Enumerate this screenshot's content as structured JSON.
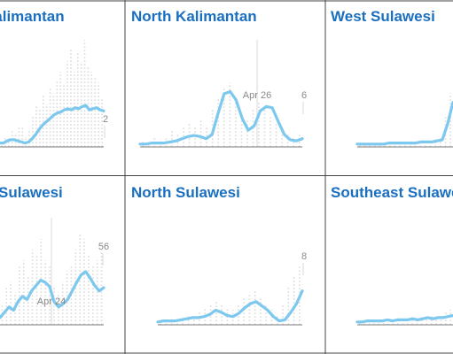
{
  "colors": {
    "line": "#7cc8ee",
    "dots": "#dcdcdc",
    "baseline": "#7a7a7a",
    "refline": "#d8d8d8",
    "label": "#8a8a8a",
    "title": "#1a6fc0",
    "border": "#444444"
  },
  "chart_data": [
    {
      "type": "line",
      "title": "Kalimantan",
      "value_label": "2",
      "date_label": "",
      "trend": [
        0.02,
        0.02,
        0.04,
        0.05,
        0.05,
        0.04,
        0.03,
        0.02,
        0.03,
        0.06,
        0.1,
        0.15,
        0.19,
        0.22,
        0.25,
        0.28,
        0.3,
        0.31,
        0.33,
        0.34,
        0.33,
        0.35,
        0.34,
        0.36,
        0.37,
        0.33,
        0.34,
        0.35,
        0.33,
        0.32
      ],
      "dots": [
        0.05,
        0.1,
        0.08,
        0.15,
        0.12,
        0.2,
        0.18,
        0.1,
        0.16,
        0.28,
        0.38,
        0.35,
        0.48,
        0.4,
        0.55,
        0.5,
        0.62,
        0.7,
        0.58,
        0.8,
        0.92,
        0.7,
        0.88,
        0.78,
        1.0,
        0.75,
        0.7,
        0.65,
        0.6,
        0.45
      ]
    },
    {
      "type": "line",
      "title": "North Kalimantan",
      "value_label": "6",
      "date_label": "Apr 26",
      "trend": [
        0.01,
        0.01,
        0.02,
        0.02,
        0.02,
        0.03,
        0.04,
        0.06,
        0.08,
        0.09,
        0.08,
        0.06,
        0.1,
        0.3,
        0.48,
        0.5,
        0.42,
        0.25,
        0.14,
        0.18,
        0.32,
        0.36,
        0.35,
        0.22,
        0.1,
        0.05,
        0.04,
        0.06
      ],
      "dots": [
        0.05,
        0.04,
        0.08,
        0.07,
        0.1,
        0.15,
        0.12,
        0.2,
        0.22,
        0.18,
        0.25,
        0.2,
        0.35,
        0.45,
        0.55,
        0.6,
        0.45,
        0.3,
        0.25,
        0.35,
        0.42,
        0.38,
        0.3,
        0.22,
        0.18,
        0.12,
        0.1,
        0.12
      ]
    },
    {
      "type": "line",
      "title": "West Sulawesi",
      "value_label": "",
      "date_label": "",
      "trend": [
        0.01,
        0.01,
        0.01,
        0.01,
        0.01,
        0.01,
        0.02,
        0.02,
        0.02,
        0.02,
        0.02,
        0.02,
        0.03,
        0.03,
        0.03,
        0.04,
        0.05,
        0.2,
        0.4
      ],
      "dots": [
        0.02,
        0.02,
        0.03,
        0.02,
        0.03,
        0.02,
        0.04,
        0.03,
        0.03,
        0.04,
        0.04,
        0.03,
        0.05,
        0.05,
        0.06,
        0.07,
        0.08,
        0.3,
        0.5
      ]
    },
    {
      "type": "line",
      "title": "Sulawesi",
      "value_label": "56",
      "date_label": "Apr 24",
      "trend": [
        0.05,
        0.1,
        0.15,
        0.12,
        0.2,
        0.25,
        0.22,
        0.3,
        0.35,
        0.4,
        0.38,
        0.34,
        0.2,
        0.15,
        0.18,
        0.22,
        0.3,
        0.38,
        0.45,
        0.48,
        0.42,
        0.35,
        0.3,
        0.33
      ],
      "dots": [
        0.2,
        0.35,
        0.4,
        0.3,
        0.55,
        0.6,
        0.45,
        0.7,
        0.65,
        0.8,
        0.6,
        0.55,
        0.35,
        0.3,
        0.4,
        0.5,
        0.55,
        0.7,
        0.85,
        0.8,
        0.65,
        0.55,
        0.6,
        0.7
      ]
    },
    {
      "type": "line",
      "title": "North Sulawesi",
      "value_label": "8",
      "date_label": "",
      "trend": [
        0.01,
        0.02,
        0.02,
        0.02,
        0.03,
        0.04,
        0.05,
        0.05,
        0.06,
        0.08,
        0.12,
        0.1,
        0.07,
        0.06,
        0.09,
        0.14,
        0.18,
        0.2,
        0.16,
        0.12,
        0.06,
        0.02,
        0.03,
        0.1,
        0.18,
        0.3
      ],
      "dots": [
        0.03,
        0.04,
        0.05,
        0.06,
        0.06,
        0.1,
        0.08,
        0.12,
        0.15,
        0.18,
        0.22,
        0.2,
        0.16,
        0.14,
        0.18,
        0.25,
        0.3,
        0.32,
        0.26,
        0.2,
        0.14,
        0.1,
        0.18,
        0.35,
        0.45,
        0.55
      ]
    },
    {
      "type": "line",
      "title": "Southeast Sulawesi",
      "value_label": "",
      "date_label": "",
      "trend": [
        0.01,
        0.01,
        0.02,
        0.02,
        0.02,
        0.02,
        0.03,
        0.02,
        0.03,
        0.03,
        0.03,
        0.04,
        0.03,
        0.04,
        0.05,
        0.04,
        0.05,
        0.05,
        0.06,
        0.07
      ],
      "dots": [
        0.02,
        0.03,
        0.03,
        0.04,
        0.04,
        0.04,
        0.05,
        0.05,
        0.06,
        0.06,
        0.06,
        0.07,
        0.06,
        0.07,
        0.08,
        0.08,
        0.09,
        0.1,
        0.12,
        0.14
      ]
    }
  ]
}
